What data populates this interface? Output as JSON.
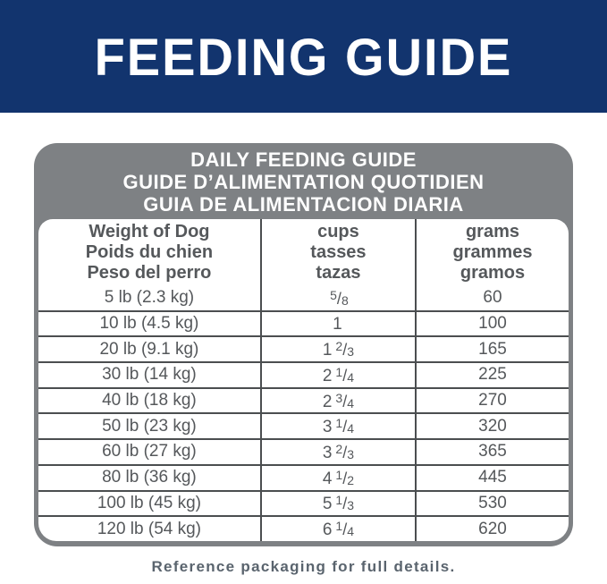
{
  "banner": {
    "title": "FEEDING GUIDE"
  },
  "guide": {
    "title_lines": [
      "DAILY FEEDING GUIDE",
      "GUIDE D’ALIMENTATION QUOTIDIEN",
      "GUIA DE ALIMENTACION DIARIA"
    ],
    "columns": [
      {
        "lines": [
          "Weight of Dog",
          "Poids du chien",
          "Peso del perro"
        ]
      },
      {
        "lines": [
          "cups",
          "tasses",
          "tazas"
        ]
      },
      {
        "lines": [
          "grams",
          "grammes",
          "gramos"
        ]
      }
    ],
    "rows": [
      {
        "weight": "5 lb (2.3 kg)",
        "cups_whole": "",
        "cups_num": "5",
        "cups_slash": "/",
        "cups_den": "8",
        "grams": "60"
      },
      {
        "weight": "10 lb (4.5 kg)",
        "cups_whole": "1",
        "cups_num": "",
        "cups_slash": "",
        "cups_den": "",
        "grams": "100"
      },
      {
        "weight": "20 lb (9.1 kg)",
        "cups_whole": "1",
        "cups_num": "2",
        "cups_slash": "/",
        "cups_den": "3",
        "grams": "165"
      },
      {
        "weight": "30 lb (14 kg)",
        "cups_whole": "2",
        "cups_num": "1",
        "cups_slash": "/",
        "cups_den": "4",
        "grams": "225"
      },
      {
        "weight": "40 lb (18 kg)",
        "cups_whole": "2",
        "cups_num": "3",
        "cups_slash": "/",
        "cups_den": "4",
        "grams": "270"
      },
      {
        "weight": "50 lb (23 kg)",
        "cups_whole": "3",
        "cups_num": "1",
        "cups_slash": "/",
        "cups_den": "4",
        "grams": "320"
      },
      {
        "weight": "60 lb (27 kg)",
        "cups_whole": "3",
        "cups_num": "2",
        "cups_slash": "/",
        "cups_den": "3",
        "grams": "365"
      },
      {
        "weight": "80 lb (36 kg)",
        "cups_whole": "4",
        "cups_num": "1",
        "cups_slash": "/",
        "cups_den": "2",
        "grams": "445"
      },
      {
        "weight": "100 lb (45 kg)",
        "cups_whole": "5",
        "cups_num": "1",
        "cups_slash": "/",
        "cups_den": "3",
        "grams": "530"
      },
      {
        "weight": "120 lb (54 kg)",
        "cups_whole": "6",
        "cups_num": "1",
        "cups_slash": "/",
        "cups_den": "4",
        "grams": "620"
      }
    ]
  },
  "footer": {
    "note": "Reference packaging for full details."
  },
  "colors": {
    "banner_blue": "#12346e",
    "card_gray": "#7e8184",
    "line_dark": "#4b4e50",
    "cell_text": "#55585b",
    "note_gray": "#5a646e",
    "text_white": "#ffffff"
  }
}
